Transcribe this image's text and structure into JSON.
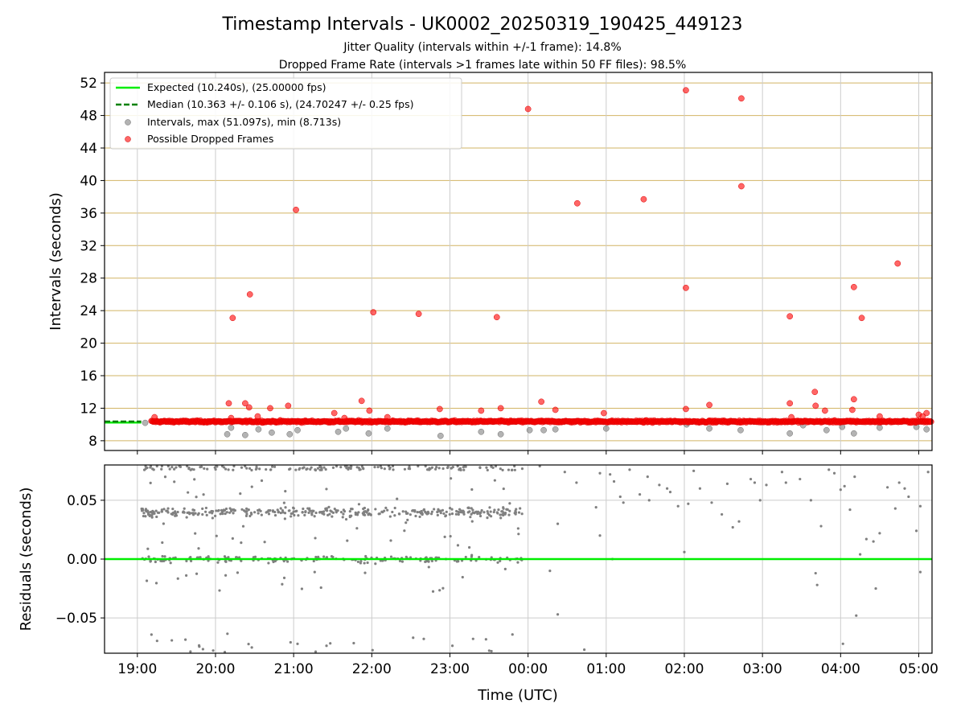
{
  "title": "Timestamp Intervals - UK0002_20250319_190425_449123",
  "subtitle_1": "Jitter Quality (intervals within +/-1 frame): 14.8%",
  "subtitle_2": "Dropped Frame Rate (intervals >1 frames late within 50 FF files): 98.5%",
  "colors": {
    "expected": "#00ee00",
    "median": "#008000",
    "intervals": "#808080",
    "dropped": "#ff0000",
    "hgrid": "#d2b464",
    "vgrid": "#cccccc"
  },
  "chart_data": [
    {
      "type": "scatter",
      "title": "Timestamp Intervals - UK0002_20250319_190425_449123",
      "ylabel": "Intervals (seconds)",
      "xlabel": "",
      "xlim_hours": [
        18.58,
        29.17
      ],
      "ylim": [
        6.8,
        53.3
      ],
      "yticks": [
        8,
        12,
        16,
        20,
        24,
        28,
        32,
        36,
        40,
        44,
        48,
        52
      ],
      "xticks_hours": [
        19,
        20,
        21,
        22,
        23,
        24,
        25,
        26,
        27,
        28,
        29
      ],
      "grid": "on",
      "legend_position": "top-left",
      "expected": {
        "label": "Expected (10.240s), (25.00000 fps)",
        "y": 10.24
      },
      "median": {
        "label": "Median (10.363 +/- 0.106 s), (24.70247 +/- 0.25 fps)",
        "y": 10.363
      },
      "intervals_label": "Intervals, max (51.097s), min (8.713s)",
      "dropped_label": "Possible Dropped Frames",
      "dropped_outliers": [
        [
          19.22,
          10.9
        ],
        [
          20.17,
          12.6
        ],
        [
          20.2,
          10.8
        ],
        [
          20.22,
          23.1
        ],
        [
          20.38,
          12.6
        ],
        [
          20.43,
          12.1
        ],
        [
          20.44,
          26.0
        ],
        [
          20.54,
          11.0
        ],
        [
          20.7,
          12.0
        ],
        [
          20.93,
          12.3
        ],
        [
          21.03,
          36.4
        ],
        [
          21.52,
          11.4
        ],
        [
          21.65,
          10.8
        ],
        [
          21.87,
          12.9
        ],
        [
          21.97,
          11.7
        ],
        [
          22.02,
          23.8
        ],
        [
          22.2,
          10.9
        ],
        [
          22.6,
          23.6
        ],
        [
          22.87,
          11.9
        ],
        [
          23.4,
          11.7
        ],
        [
          23.6,
          23.2
        ],
        [
          23.65,
          12.0
        ],
        [
          24.0,
          48.8
        ],
        [
          24.17,
          12.8
        ],
        [
          24.35,
          11.8
        ],
        [
          24.63,
          37.2
        ],
        [
          24.97,
          11.4
        ],
        [
          25.48,
          37.7
        ],
        [
          26.02,
          51.1
        ],
        [
          26.02,
          26.8
        ],
        [
          26.02,
          11.9
        ],
        [
          26.32,
          12.4
        ],
        [
          26.73,
          50.1
        ],
        [
          26.73,
          39.3
        ],
        [
          27.35,
          12.6
        ],
        [
          27.35,
          23.3
        ],
        [
          27.37,
          10.9
        ],
        [
          27.67,
          14.0
        ],
        [
          27.68,
          12.3
        ],
        [
          27.8,
          11.7
        ],
        [
          28.17,
          26.9
        ],
        [
          28.17,
          13.1
        ],
        [
          28.15,
          11.8
        ],
        [
          28.27,
          23.1
        ],
        [
          28.5,
          11.0
        ],
        [
          28.73,
          29.8
        ],
        [
          29.0,
          11.2
        ],
        [
          29.05,
          11.0
        ],
        [
          29.1,
          11.4
        ]
      ],
      "gray_outliers": [
        [
          19.1,
          10.2
        ],
        [
          20.15,
          8.8
        ],
        [
          20.2,
          9.6
        ],
        [
          20.38,
          8.7
        ],
        [
          20.55,
          9.4
        ],
        [
          20.72,
          9.0
        ],
        [
          20.95,
          8.8
        ],
        [
          21.05,
          9.3
        ],
        [
          21.57,
          9.1
        ],
        [
          21.67,
          9.5
        ],
        [
          21.96,
          8.9
        ],
        [
          22.2,
          9.5
        ],
        [
          22.88,
          8.6
        ],
        [
          23.4,
          9.1
        ],
        [
          23.65,
          8.8
        ],
        [
          24.02,
          9.3
        ],
        [
          24.2,
          9.3
        ],
        [
          24.35,
          9.4
        ],
        [
          25.0,
          9.5
        ],
        [
          26.03,
          10.0
        ],
        [
          26.32,
          9.5
        ],
        [
          26.72,
          9.3
        ],
        [
          27.35,
          8.9
        ],
        [
          27.52,
          9.9
        ],
        [
          27.82,
          9.3
        ],
        [
          28.02,
          9.7
        ],
        [
          28.17,
          8.9
        ],
        [
          28.5,
          9.6
        ],
        [
          28.97,
          9.7
        ],
        [
          29.1,
          9.4
        ]
      ]
    },
    {
      "type": "scatter",
      "ylabel": "Residuals (seconds)",
      "xlabel": "Time (UTC)",
      "xlim_hours": [
        18.58,
        29.17
      ],
      "ylim": [
        -0.08,
        0.08
      ],
      "yticks": [
        -0.05,
        0.0,
        0.05
      ],
      "xticks_hours": [
        19,
        20,
        21,
        22,
        23,
        24,
        25,
        26,
        27,
        28,
        29
      ],
      "baseline": 0.0,
      "grid": "on",
      "dense_range_hours": [
        19.05,
        23.95
      ],
      "bands": [
        0.04,
        0.0,
        0.08
      ],
      "sparse_points": [
        [
          24.15,
          0.079
        ],
        [
          24.38,
          0.03
        ],
        [
          24.38,
          -0.047
        ],
        [
          24.28,
          -0.01
        ],
        [
          24.62,
          0.065
        ],
        [
          24.72,
          -0.077
        ],
        [
          24.87,
          0.044
        ],
        [
          24.92,
          0.02
        ],
        [
          25.08,
          0.0
        ],
        [
          25.18,
          0.053
        ],
        [
          25.22,
          0.048
        ],
        [
          25.43,
          0.055
        ],
        [
          25.53,
          0.07
        ],
        [
          25.68,
          0.063
        ],
        [
          25.78,
          0.06
        ],
        [
          25.82,
          0.057
        ],
        [
          25.92,
          0.045
        ],
        [
          26.0,
          0.006
        ],
        [
          26.05,
          0.047
        ],
        [
          26.2,
          0.06
        ],
        [
          26.35,
          0.048
        ],
        [
          26.48,
          0.038
        ],
        [
          26.62,
          0.027
        ],
        [
          26.7,
          0.032
        ],
        [
          26.85,
          0.068
        ],
        [
          26.97,
          0.05
        ],
        [
          27.05,
          0.063
        ],
        [
          27.25,
          0.074
        ],
        [
          27.48,
          0.068
        ],
        [
          27.62,
          0.05
        ],
        [
          27.75,
          0.028
        ],
        [
          27.85,
          0.076
        ],
        [
          27.92,
          0.073
        ],
        [
          28.0,
          0.059
        ],
        [
          28.05,
          0.062
        ],
        [
          28.12,
          0.042
        ],
        [
          28.2,
          -0.048
        ],
        [
          28.25,
          0.004
        ],
        [
          28.33,
          0.017
        ],
        [
          28.42,
          0.015
        ],
        [
          28.5,
          0.022
        ],
        [
          28.6,
          0.061
        ],
        [
          28.7,
          0.043
        ],
        [
          28.75,
          0.065
        ],
        [
          28.87,
          0.053
        ],
        [
          28.97,
          0.024
        ],
        [
          29.02,
          0.045
        ],
        [
          29.02,
          -0.011
        ],
        [
          29.12,
          0.074
        ],
        [
          26.55,
          0.064
        ],
        [
          25.3,
          0.076
        ],
        [
          27.68,
          -0.012
        ],
        [
          27.7,
          -0.022
        ],
        [
          28.03,
          -0.072
        ],
        [
          28.45,
          -0.025
        ],
        [
          25.55,
          0.05
        ],
        [
          26.12,
          0.075
        ],
        [
          26.9,
          0.065
        ],
        [
          27.3,
          0.065
        ],
        [
          28.18,
          0.07
        ],
        [
          28.82,
          0.06
        ],
        [
          24.47,
          0.074
        ],
        [
          24.92,
          0.073
        ],
        [
          25.05,
          0.072
        ],
        [
          25.1,
          0.066
        ]
      ]
    }
  ],
  "top_yticks": [
    "8",
    "12",
    "16",
    "20",
    "24",
    "28",
    "32",
    "36",
    "40",
    "44",
    "48",
    "52"
  ],
  "bottom_yticks": [
    "−0.05",
    "0.00",
    "0.05"
  ],
  "xticks": [
    "19:00",
    "20:00",
    "21:00",
    "22:00",
    "23:00",
    "00:00",
    "01:00",
    "02:00",
    "03:00",
    "04:00",
    "05:00"
  ],
  "legend": [
    "Expected (10.240s), (25.00000 fps)",
    "Median (10.363 +/- 0.106 s), (24.70247 +/- 0.25 fps)",
    "Intervals, max (51.097s), min (8.713s)",
    "Possible Dropped Frames"
  ]
}
